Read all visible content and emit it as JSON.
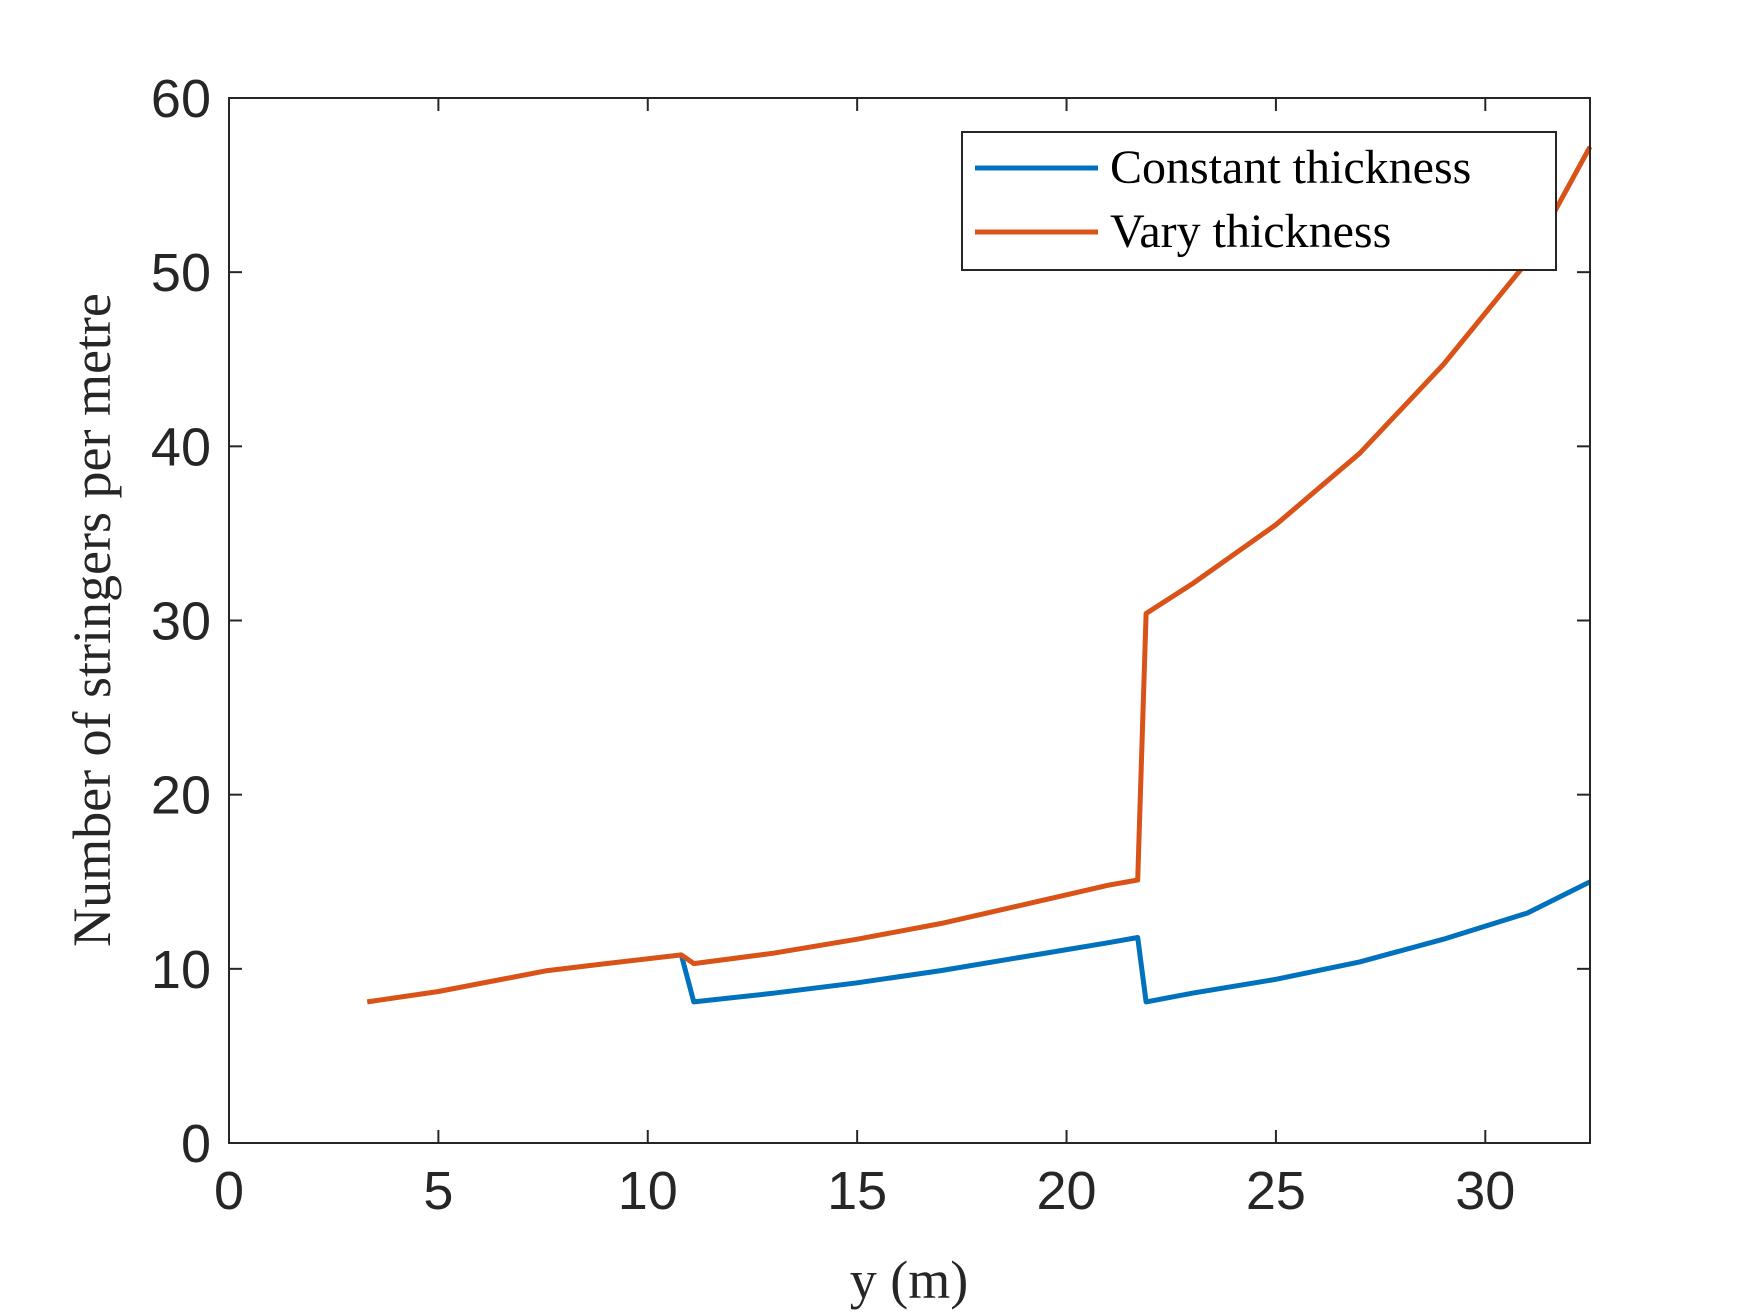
{
  "chart_data": {
    "type": "line",
    "xlabel": "y (m)",
    "ylabel": "Number of stringers per metre",
    "xlim": [
      0,
      32.5
    ],
    "ylim": [
      0,
      60
    ],
    "xticks": [
      0,
      5,
      10,
      15,
      20,
      25,
      30
    ],
    "yticks": [
      0,
      10,
      20,
      30,
      40,
      50,
      60
    ],
    "legend_position": "top-right",
    "grid": false,
    "series": [
      {
        "name": "Constant thickness",
        "color": "#0072BD",
        "x": [
          10.8,
          11.1,
          13,
          15,
          17,
          19,
          21,
          21.7,
          21.9,
          23,
          25,
          27,
          29,
          31,
          32.5
        ],
        "y": [
          10.8,
          8.1,
          8.6,
          9.2,
          9.9,
          10.7,
          11.5,
          11.8,
          8.1,
          8.6,
          9.4,
          10.4,
          11.7,
          13.2,
          15.0
        ]
      },
      {
        "name": "Vary thickness",
        "color": "#D95319",
        "x": [
          3.3,
          5,
          7.6,
          9,
          10.8,
          11.1,
          13,
          15,
          17,
          19,
          21,
          21.7,
          21.9,
          23,
          25,
          27,
          29,
          31,
          32.5
        ],
        "y": [
          8.1,
          8.7,
          9.9,
          10.3,
          10.8,
          10.3,
          10.9,
          11.7,
          12.6,
          13.7,
          14.8,
          15.1,
          30.4,
          32.1,
          35.5,
          39.6,
          44.7,
          50.6,
          57.2
        ]
      }
    ]
  }
}
